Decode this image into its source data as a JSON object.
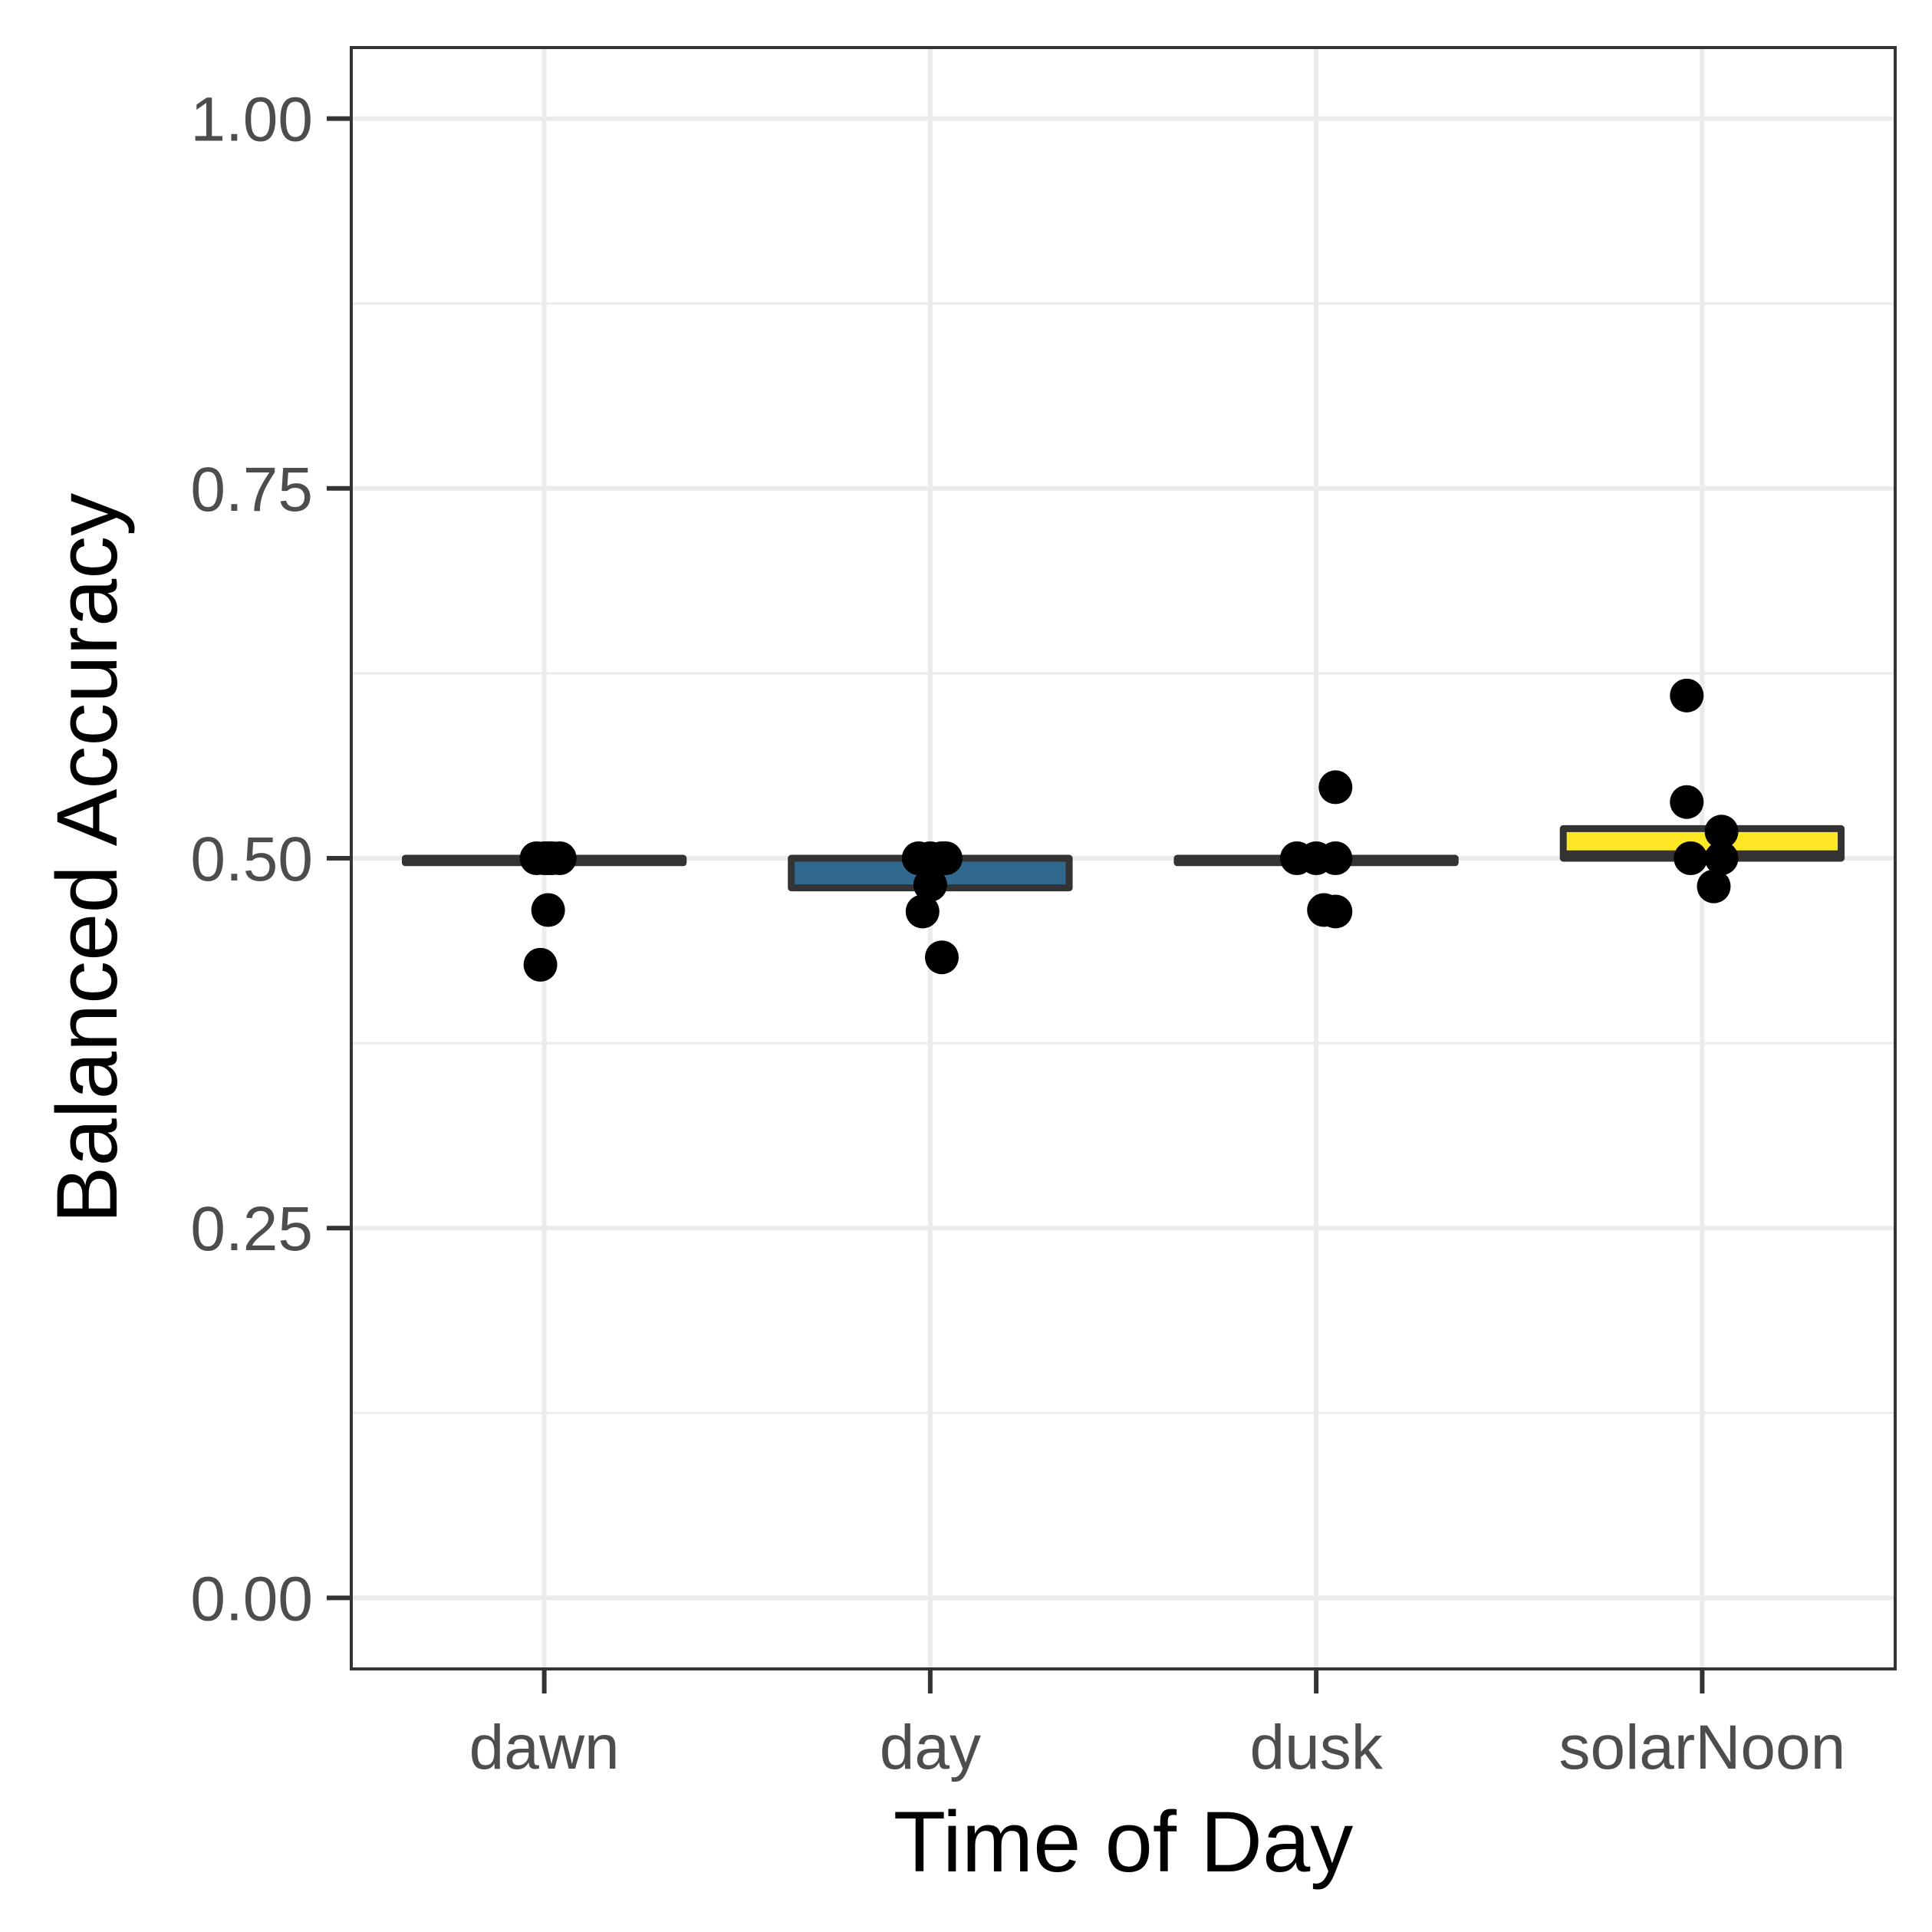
{
  "chart_data": {
    "type": "box",
    "xlabel": "Time of Day",
    "ylabel": "Balanced Accuracy",
    "ylim": [
      -0.048,
      1.048
    ],
    "yticks": [
      0.0,
      0.25,
      0.5,
      0.75,
      1.0
    ],
    "ytick_labels": [
      "0.00",
      "0.25",
      "0.50",
      "0.75",
      "1.00"
    ],
    "categories": [
      "dawn",
      "day",
      "dusk",
      "solarNoon"
    ],
    "grid": true,
    "legend": "none",
    "boxes": [
      {
        "category": "dawn",
        "q1": 0.497,
        "median": 0.5,
        "q3": 0.5,
        "fill": "#3a3a3a"
      },
      {
        "category": "day",
        "q1": 0.48,
        "median": 0.5,
        "q3": 0.5,
        "fill": "#31688e"
      },
      {
        "category": "dusk",
        "q1": 0.497,
        "median": 0.5,
        "q3": 0.5,
        "fill": "#3a3a3a"
      },
      {
        "category": "solarNoon",
        "q1": 0.5,
        "median": 0.503,
        "q3": 0.52,
        "fill": "#fde725"
      }
    ],
    "points": [
      {
        "category": "dawn",
        "y": 0.5,
        "jitter": -0.02
      },
      {
        "category": "dawn",
        "y": 0.5,
        "jitter": 0.0
      },
      {
        "category": "dawn",
        "y": 0.5,
        "jitter": 0.02
      },
      {
        "category": "dawn",
        "y": 0.5,
        "jitter": 0.04
      },
      {
        "category": "dawn",
        "y": 0.5,
        "jitter": 0.01
      },
      {
        "category": "dawn",
        "y": 0.465,
        "jitter": 0.01
      },
      {
        "category": "dawn",
        "y": 0.428,
        "jitter": -0.01
      },
      {
        "category": "day",
        "y": 0.5,
        "jitter": -0.03
      },
      {
        "category": "day",
        "y": 0.5,
        "jitter": 0.0
      },
      {
        "category": "day",
        "y": 0.5,
        "jitter": 0.03
      },
      {
        "category": "day",
        "y": 0.5,
        "jitter": 0.04
      },
      {
        "category": "day",
        "y": 0.482,
        "jitter": 0.0
      },
      {
        "category": "day",
        "y": 0.464,
        "jitter": -0.02
      },
      {
        "category": "day",
        "y": 0.433,
        "jitter": 0.03
      },
      {
        "category": "dusk",
        "y": 0.5,
        "jitter": -0.05
      },
      {
        "category": "dusk",
        "y": 0.5,
        "jitter": 0.0
      },
      {
        "category": "dusk",
        "y": 0.5,
        "jitter": 0.05
      },
      {
        "category": "dusk",
        "y": 0.548,
        "jitter": 0.05
      },
      {
        "category": "dusk",
        "y": 0.465,
        "jitter": 0.02
      },
      {
        "category": "dusk",
        "y": 0.464,
        "jitter": 0.05
      },
      {
        "category": "solarNoon",
        "y": 0.61,
        "jitter": -0.04
      },
      {
        "category": "solarNoon",
        "y": 0.538,
        "jitter": -0.04
      },
      {
        "category": "solarNoon",
        "y": 0.518,
        "jitter": 0.05
      },
      {
        "category": "solarNoon",
        "y": 0.5,
        "jitter": -0.03
      },
      {
        "category": "solarNoon",
        "y": 0.5,
        "jitter": 0.05
      },
      {
        "category": "solarNoon",
        "y": 0.481,
        "jitter": 0.03
      }
    ]
  },
  "colors": {
    "panel_border": "#333333",
    "grid": "#ebebeb",
    "tick_text": "#4d4d4d",
    "point": "#000000",
    "box_outline": "#333333"
  }
}
